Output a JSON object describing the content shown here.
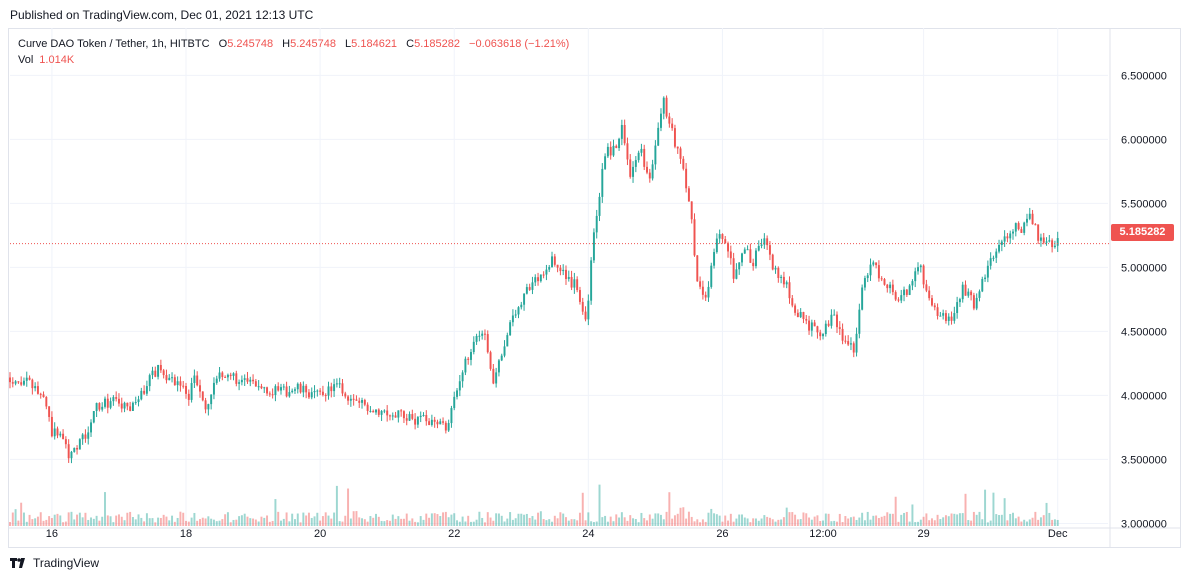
{
  "header": {
    "published": "Published on TradingView.com, Dec 01, 2021 12:13 UTC"
  },
  "legend": {
    "symbol": "Curve DAO Token / Tether, 1h, HITBTC",
    "o_label": "O",
    "o_value": "5.245748",
    "h_label": "H",
    "h_value": "5.245748",
    "l_label": "L",
    "l_value": "5.184621",
    "c_label": "C",
    "c_value": "5.185282",
    "change": "−0.063618 (−1.21%)",
    "vol_label": "Vol",
    "vol_value": "1.014K"
  },
  "price_tag": "5.185282",
  "brand": {
    "name": "TradingView"
  },
  "colors": {
    "up": "#26a69a",
    "down": "#ef5350",
    "grid": "#f0f3fa",
    "axis_text": "#131722"
  },
  "chart_data": {
    "type": "candlestick",
    "title": "Curve DAO Token / Tether, 1h, HITBTC",
    "y_ticks": [
      "3.000000",
      "3.500000",
      "4.000000",
      "4.500000",
      "5.000000",
      "5.500000",
      "6.000000",
      "6.500000"
    ],
    "ylim": [
      2.98,
      6.87
    ],
    "x_ticks": [
      {
        "label": "16",
        "x": 15
      },
      {
        "label": "18",
        "x": 63
      },
      {
        "label": "20",
        "x": 111
      },
      {
        "label": "22",
        "x": 159
      },
      {
        "label": "24",
        "x": 207
      },
      {
        "label": "26",
        "x": 255
      },
      {
        "label": "12:00",
        "x": 291
      },
      {
        "label": "29",
        "x": 327
      },
      {
        "label": "Dec",
        "x": 375
      }
    ],
    "xlim": [
      0,
      393
    ],
    "last_price": 5.185282,
    "path_knots": [
      [
        0,
        4.14
      ],
      [
        8,
        4.08
      ],
      [
        13,
        3.95
      ],
      [
        15,
        3.7
      ],
      [
        18,
        3.72
      ],
      [
        21,
        3.55
      ],
      [
        24,
        3.62
      ],
      [
        28,
        3.7
      ],
      [
        31,
        3.92
      ],
      [
        37,
        3.96
      ],
      [
        43,
        3.88
      ],
      [
        48,
        4.05
      ],
      [
        53,
        4.22
      ],
      [
        58,
        4.12
      ],
      [
        61,
        4.08
      ],
      [
        64,
        4.0
      ],
      [
        66,
        4.15
      ],
      [
        70,
        3.88
      ],
      [
        74,
        4.12
      ],
      [
        78,
        4.18
      ],
      [
        83,
        4.1
      ],
      [
        90,
        4.08
      ],
      [
        96,
        4.02
      ],
      [
        103,
        4.05
      ],
      [
        110,
        4.0
      ],
      [
        117,
        4.08
      ],
      [
        121,
        3.98
      ],
      [
        127,
        3.92
      ],
      [
        133,
        3.88
      ],
      [
        140,
        3.85
      ],
      [
        146,
        3.8
      ],
      [
        152,
        3.82
      ],
      [
        156,
        3.75
      ],
      [
        160,
        4.02
      ],
      [
        163,
        4.25
      ],
      [
        166,
        4.45
      ],
      [
        170,
        4.5
      ],
      [
        173,
        4.1
      ],
      [
        176,
        4.35
      ],
      [
        180,
        4.6
      ],
      [
        184,
        4.8
      ],
      [
        189,
        4.92
      ],
      [
        194,
        5.05
      ],
      [
        199,
        4.92
      ],
      [
        203,
        4.85
      ],
      [
        206,
        4.55
      ],
      [
        209,
        5.25
      ],
      [
        213,
        5.9
      ],
      [
        216,
        5.92
      ],
      [
        219,
        6.08
      ],
      [
        222,
        5.75
      ],
      [
        226,
        5.9
      ],
      [
        229,
        5.65
      ],
      [
        232,
        6.1
      ],
      [
        234,
        6.3
      ],
      [
        237,
        6.05
      ],
      [
        240,
        5.85
      ],
      [
        243,
        5.55
      ],
      [
        246,
        4.9
      ],
      [
        249,
        4.75
      ],
      [
        253,
        5.25
      ],
      [
        256,
        5.22
      ],
      [
        259,
        4.95
      ],
      [
        262,
        5.15
      ],
      [
        266,
        5.05
      ],
      [
        270,
        5.25
      ],
      [
        273,
        5.0
      ],
      [
        277,
        4.9
      ],
      [
        281,
        4.68
      ],
      [
        286,
        4.55
      ],
      [
        290,
        4.45
      ],
      [
        293,
        4.55
      ],
      [
        295,
        4.62
      ],
      [
        299,
        4.4
      ],
      [
        302,
        4.38
      ],
      [
        305,
        4.8
      ],
      [
        308,
        5.05
      ],
      [
        311,
        4.95
      ],
      [
        315,
        4.85
      ],
      [
        318,
        4.72
      ],
      [
        322,
        4.85
      ],
      [
        326,
        5.0
      ],
      [
        329,
        4.72
      ],
      [
        333,
        4.62
      ],
      [
        337,
        4.58
      ],
      [
        341,
        4.85
      ],
      [
        345,
        4.72
      ],
      [
        349,
        4.95
      ],
      [
        352,
        5.1
      ],
      [
        356,
        5.2
      ],
      [
        359,
        5.32
      ],
      [
        362,
        5.28
      ],
      [
        365,
        5.4
      ],
      [
        368,
        5.25
      ],
      [
        371,
        5.22
      ],
      [
        374,
        5.19
      ]
    ],
    "volume_note": "histogram of hourly volume bars coloured by candle direction"
  }
}
